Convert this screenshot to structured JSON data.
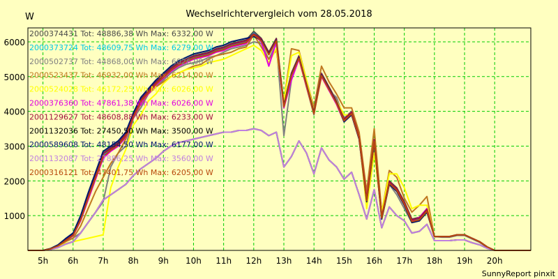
{
  "chart_data": {
    "type": "line",
    "title": "Wechselrichtervergleich vom 28.05.2018",
    "ylabel": "W",
    "xlabel": "",
    "credit": "SunnyReport pinxit",
    "ylim": [
      0,
      6400
    ],
    "xlim": [
      4.5,
      21.2
    ],
    "yticks": [
      1000,
      2000,
      3000,
      4000,
      5000,
      6000
    ],
    "xticks": [
      {
        "v": 5,
        "label": "5h"
      },
      {
        "v": 6,
        "label": "6h"
      },
      {
        "v": 7,
        "label": "7h"
      },
      {
        "v": 8,
        "label": "8h"
      },
      {
        "v": 9,
        "label": "9h"
      },
      {
        "v": 10,
        "label": "10h"
      },
      {
        "v": 11,
        "label": "11h"
      },
      {
        "v": 12,
        "label": "12h"
      },
      {
        "v": 13,
        "label": "13h"
      },
      {
        "v": 14,
        "label": "14h"
      },
      {
        "v": 15,
        "label": "15h"
      },
      {
        "v": 16,
        "label": "16h"
      },
      {
        "v": 17,
        "label": "17h"
      },
      {
        "v": 18,
        "label": "18h"
      },
      {
        "v": 19,
        "label": "19h"
      },
      {
        "v": 20,
        "label": "20h"
      }
    ],
    "grid": true,
    "legend_position": "top-left",
    "x": [
      4.5,
      4.75,
      5.0,
      5.25,
      5.5,
      5.75,
      6.0,
      6.25,
      6.5,
      6.75,
      7.0,
      7.25,
      7.5,
      7.75,
      8.0,
      8.25,
      8.5,
      8.75,
      9.0,
      9.25,
      9.5,
      9.75,
      10.0,
      10.25,
      10.5,
      10.75,
      11.0,
      11.25,
      11.5,
      11.75,
      12.0,
      12.25,
      12.5,
      12.75,
      13.0,
      13.25,
      13.5,
      13.75,
      14.0,
      14.25,
      14.5,
      14.75,
      15.0,
      15.25,
      15.5,
      15.75,
      16.0,
      16.25,
      16.5,
      16.75,
      17.0,
      17.25,
      17.5,
      17.75,
      18.0,
      18.25,
      18.5,
      18.75,
      19.0,
      19.25,
      19.5,
      19.75,
      20.0,
      20.25,
      20.5,
      20.75,
      21.0,
      21.2
    ],
    "series": [
      {
        "name": "2000374431 Tot: 48886,38 Wh Max: 6332,00 W",
        "color": "#4a4a4a",
        "values": [
          0,
          0,
          0,
          50,
          150,
          320,
          480,
          950,
          1600,
          2200,
          2800,
          2950,
          3100,
          3350,
          3900,
          4350,
          4600,
          4850,
          5050,
          5250,
          5400,
          5500,
          5600,
          5650,
          5700,
          5800,
          5850,
          5950,
          6000,
          6050,
          6300,
          6100,
          5700,
          6100,
          4200,
          5100,
          5600,
          4800,
          4000,
          5100,
          4700,
          4300,
          3800,
          4000,
          3300,
          1500,
          3200,
          1000,
          2000,
          1800,
          1400,
          900,
          950,
          1200,
          400,
          400,
          400,
          450,
          450,
          350,
          250,
          100,
          0,
          0,
          0,
          0,
          0,
          0
        ]
      },
      {
        "name": "2000373724 Tot: 48609,75 Wh Max: 6279,00 W",
        "color": "#00c8e6",
        "values": [
          0,
          0,
          0,
          45,
          140,
          300,
          460,
          920,
          1550,
          2150,
          2750,
          2900,
          3050,
          3300,
          3850,
          4300,
          4550,
          4800,
          5000,
          5200,
          5350,
          5450,
          5550,
          5600,
          5650,
          5750,
          5800,
          5900,
          5950,
          6000,
          6250,
          6050,
          5650,
          6050,
          4150,
          5050,
          5550,
          4750,
          3950,
          5050,
          4650,
          4250,
          3750,
          3950,
          3250,
          1450,
          3150,
          950,
          1950,
          1750,
          1350,
          850,
          900,
          1150,
          400,
          400,
          400,
          450,
          450,
          350,
          250,
          100,
          0,
          0,
          0,
          0,
          0,
          0
        ]
      },
      {
        "name": "2000502737 Tot: 44868,00 Wh Max: 6026,00 W",
        "color": "#808080",
        "values": [
          0,
          0,
          0,
          40,
          120,
          260,
          360,
          500,
          800,
          1100,
          1400,
          2400,
          2800,
          3000,
          3800,
          4100,
          4500,
          4700,
          4900,
          5100,
          5250,
          5350,
          5400,
          5450,
          5550,
          5600,
          5700,
          5800,
          5850,
          5900,
          6000,
          5950,
          5500,
          5950,
          3300,
          4900,
          5550,
          4700,
          3900,
          5100,
          4600,
          4400,
          3800,
          4000,
          3200,
          1400,
          3100,
          900,
          1900,
          1600,
          1200,
          800,
          850,
          1100,
          400,
          380,
          380,
          430,
          430,
          330,
          230,
          90,
          0,
          0,
          0,
          0,
          0,
          0
        ]
      },
      {
        "name": "2000523437 Tot: 46932,00 Wh Max: 6214,00 W",
        "color": "#c07820",
        "values": [
          0,
          0,
          0,
          40,
          120,
          250,
          350,
          700,
          1200,
          1700,
          2100,
          2500,
          2800,
          3200,
          3800,
          4200,
          4500,
          4700,
          4850,
          5000,
          5100,
          5200,
          5300,
          5350,
          5500,
          5600,
          5650,
          5700,
          5800,
          5850,
          6200,
          5850,
          5500,
          5750,
          4300,
          5800,
          5750,
          4900,
          4100,
          5300,
          4850,
          4500,
          4100,
          4100,
          3400,
          1700,
          3500,
          1100,
          2300,
          2100,
          1500,
          1100,
          1300,
          1550,
          400,
          400,
          400,
          450,
          450,
          350,
          250,
          100,
          0,
          0,
          0,
          0,
          0,
          0
        ]
      },
      {
        "name": "2000524028 Tot: 46172,25 Wh Max: 6026,00 W",
        "color": "#ffff00",
        "values": [
          0,
          0,
          0,
          30,
          100,
          200,
          250,
          300,
          350,
          400,
          450,
          1800,
          2400,
          2900,
          3600,
          3900,
          4300,
          4500,
          4800,
          5000,
          5100,
          5200,
          5250,
          5300,
          5400,
          5450,
          5500,
          5600,
          5700,
          5800,
          5900,
          5750,
          5400,
          5800,
          4300,
          5600,
          5700,
          4900,
          4000,
          5000,
          4600,
          4300,
          3900,
          3900,
          3300,
          1200,
          2800,
          1100,
          2200,
          2200,
          1800,
          1200,
          1300,
          1300,
          400,
          400,
          400,
          450,
          450,
          350,
          250,
          100,
          0,
          0,
          0,
          0,
          0,
          0
        ]
      },
      {
        "name": "2000376360 Tot: 47861,38 Wh Max: 6026,00 W",
        "color": "#e000e0",
        "values": [
          0,
          0,
          0,
          40,
          130,
          280,
          420,
          850,
          1450,
          2050,
          2650,
          2850,
          3000,
          3250,
          3800,
          4250,
          4500,
          4750,
          4950,
          5150,
          5300,
          5400,
          5500,
          5550,
          5600,
          5700,
          5750,
          5850,
          5900,
          5950,
          6200,
          6000,
          5300,
          6000,
          4100,
          4900,
          5500,
          4700,
          3950,
          5000,
          4600,
          4200,
          3700,
          3900,
          3200,
          1500,
          3100,
          950,
          1900,
          1700,
          1300,
          850,
          950,
          1200,
          400,
          400,
          400,
          450,
          450,
          350,
          250,
          100,
          0,
          0,
          0,
          0,
          0,
          0
        ]
      },
      {
        "name": "2001129627 Tot: 48608,88 Wh Max: 6233,00 W",
        "color": "#a01040",
        "values": [
          0,
          0,
          0,
          50,
          140,
          310,
          470,
          930,
          1580,
          2180,
          2780,
          2930,
          3080,
          3330,
          3880,
          4330,
          4580,
          4830,
          5030,
          5230,
          5380,
          5480,
          5580,
          5630,
          5680,
          5780,
          5830,
          5930,
          5980,
          6030,
          6230,
          6080,
          5680,
          6080,
          4180,
          5080,
          5580,
          4780,
          3980,
          5080,
          4680,
          4280,
          3780,
          3980,
          3280,
          1480,
          3180,
          980,
          1980,
          1780,
          1380,
          880,
          930,
          1180,
          400,
          400,
          400,
          450,
          450,
          350,
          250,
          100,
          0,
          0,
          0,
          0,
          0,
          0
        ]
      },
      {
        "name": "2001132036 Tot: 27450,50 Wh Max: 3500,00 W",
        "color": "#000000",
        "values": [
          0,
          0,
          0,
          30,
          80,
          180,
          250,
          500,
          800,
          1100,
          1450,
          1600,
          1750,
          1900,
          2150,
          2350,
          2500,
          2650,
          2850,
          3000,
          3100,
          3150,
          3200,
          3250,
          3300,
          3350,
          3400,
          3400,
          3450,
          3450,
          3500,
          3450,
          3300,
          3400,
          2400,
          2700,
          3150,
          2800,
          2200,
          2950,
          2600,
          2400,
          2050,
          2250,
          1600,
          900,
          1750,
          650,
          1250,
          1000,
          850,
          500,
          550,
          750,
          280,
          280,
          280,
          300,
          300,
          220,
          160,
          60,
          0,
          0,
          0,
          0,
          0,
          0
        ]
      },
      {
        "name": "2000589608 Tot: 48154,50 Wh Max: 6177,00 W",
        "color": "#001870",
        "values": [
          0,
          0,
          0,
          55,
          160,
          340,
          500,
          1000,
          1650,
          2250,
          2850,
          3000,
          3150,
          3400,
          3950,
          4400,
          4650,
          4900,
          5100,
          5300,
          5450,
          5550,
          5650,
          5700,
          5750,
          5850,
          5900,
          6000,
          6050,
          6100,
          6150,
          6050,
          5650,
          6050,
          4150,
          5050,
          5550,
          4750,
          3950,
          5050,
          4650,
          4250,
          3700,
          3900,
          3200,
          1400,
          3100,
          900,
          1900,
          1700,
          1300,
          800,
          850,
          1100,
          400,
          400,
          400,
          450,
          450,
          350,
          250,
          100,
          0,
          0,
          0,
          0,
          0,
          0
        ]
      },
      {
        "name": "2001132087 Tot: 27886,25 Wh Max: 3560,00 W",
        "color": "#c080e0",
        "values": [
          0,
          0,
          0,
          30,
          80,
          180,
          250,
          500,
          800,
          1100,
          1450,
          1600,
          1750,
          1900,
          2150,
          2350,
          2500,
          2650,
          2850,
          3000,
          3100,
          3150,
          3200,
          3250,
          3300,
          3350,
          3400,
          3400,
          3450,
          3450,
          3500,
          3450,
          3300,
          3400,
          2400,
          2700,
          3150,
          2800,
          2200,
          2950,
          2600,
          2400,
          2050,
          2250,
          1600,
          900,
          1750,
          650,
          1250,
          1000,
          850,
          500,
          550,
          750,
          280,
          280,
          280,
          300,
          300,
          220,
          160,
          60,
          0,
          0,
          0,
          0,
          0,
          0
        ]
      },
      {
        "name": "2000316121 Tot: 47401,75 Wh Max: 6205,00 W",
        "color": "#b8480c",
        "values": [
          0,
          0,
          0,
          45,
          130,
          280,
          430,
          880,
          1500,
          2100,
          2700,
          2880,
          3030,
          3280,
          3830,
          4280,
          4530,
          4780,
          4980,
          5180,
          5330,
          5430,
          5530,
          5580,
          5630,
          5730,
          5780,
          5880,
          5930,
          5980,
          6200,
          6030,
          5630,
          6030,
          4130,
          5030,
          5530,
          4730,
          3930,
          5030,
          4630,
          4230,
          3730,
          3930,
          3230,
          1430,
          3130,
          930,
          1930,
          1730,
          1330,
          830,
          880,
          1130,
          400,
          400,
          400,
          450,
          450,
          350,
          250,
          100,
          0,
          0,
          0,
          0,
          0,
          0
        ]
      }
    ]
  }
}
